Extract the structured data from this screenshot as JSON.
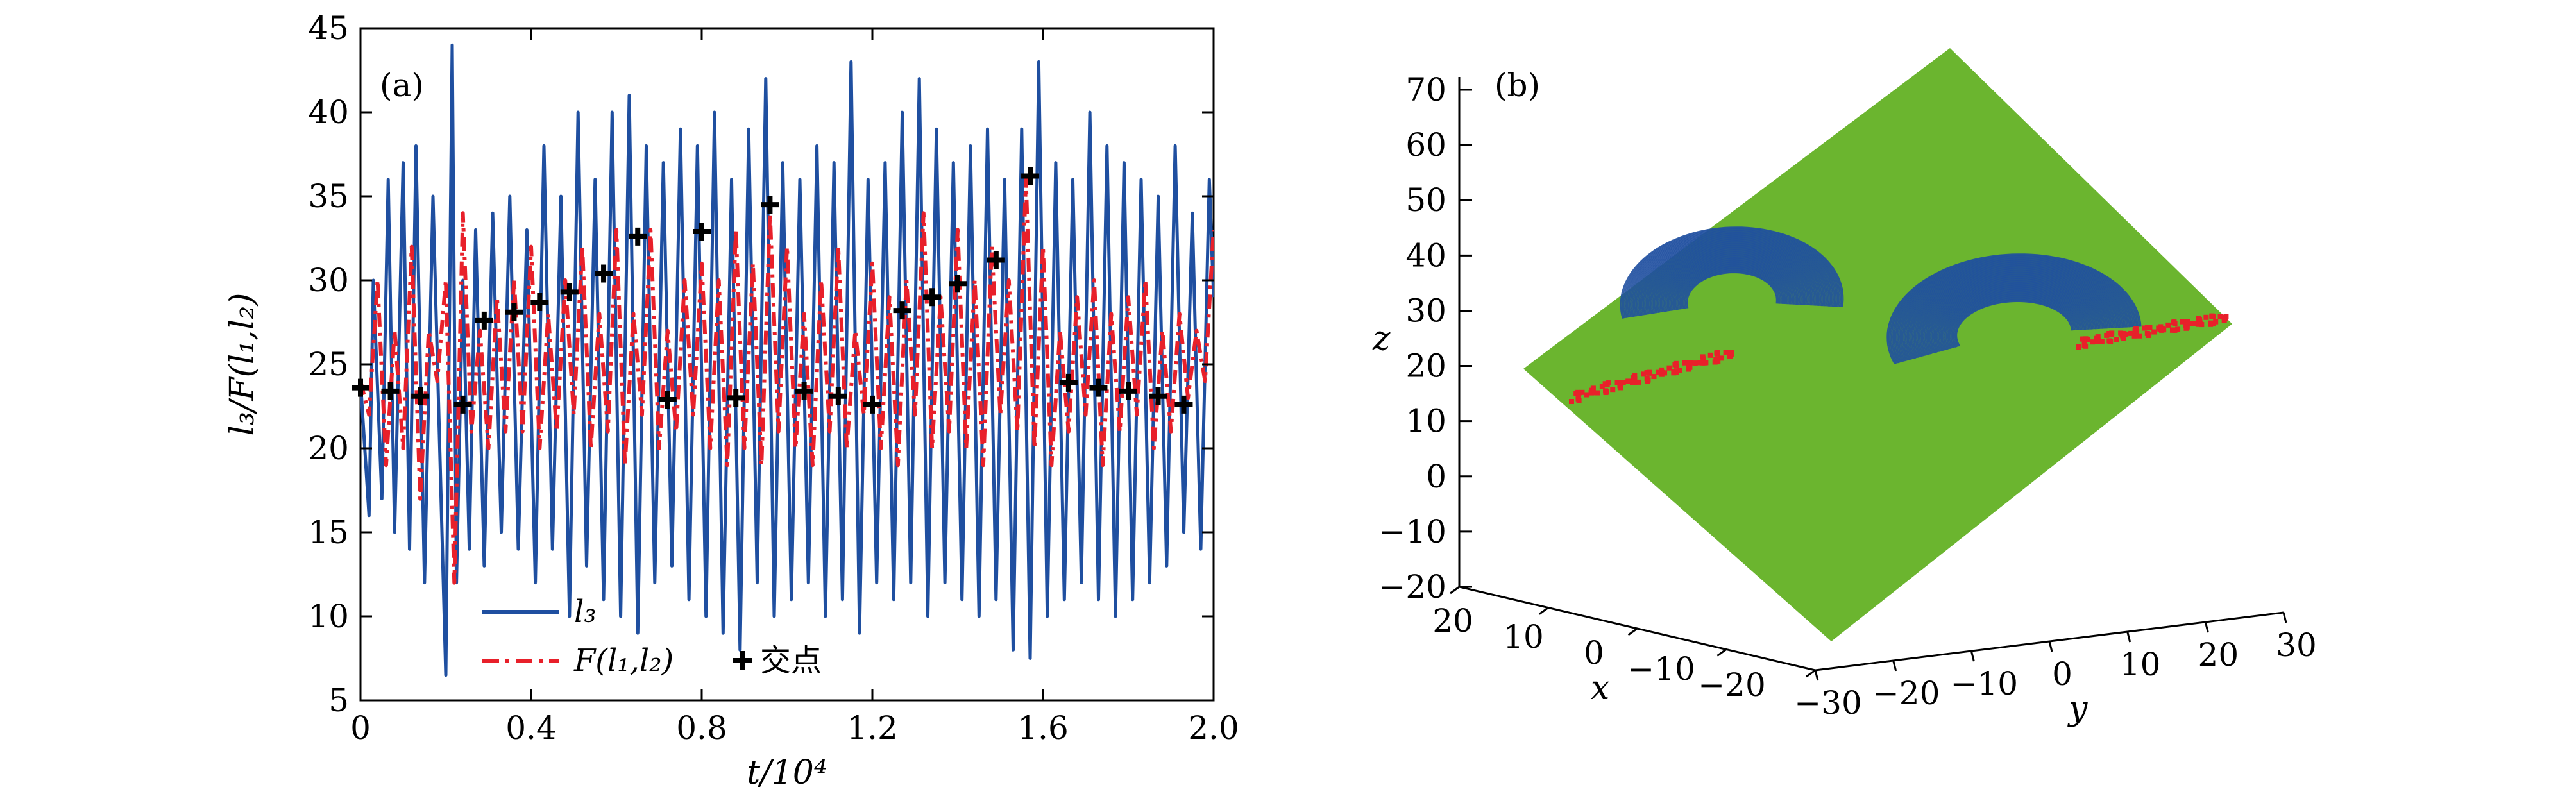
{
  "chart_data": [
    {
      "panel_label": "(a)",
      "type": "line",
      "xlabel": "t/10⁴",
      "ylabel": "l₃/F(l₁,l₂)",
      "xlim": [
        0,
        2.0
      ],
      "ylim": [
        5,
        45
      ],
      "x_ticks": [
        "0",
        "0.4",
        "0.8",
        "1.2",
        "1.6",
        "2.0"
      ],
      "y_ticks": [
        "5",
        "10",
        "15",
        "20",
        "25",
        "30",
        "35",
        "40",
        "45"
      ],
      "legend_position": "bottom-left",
      "colors": {
        "l3": "#1f4fa0",
        "F": "#e8202a",
        "marker": "#000000"
      },
      "series": [
        {
          "name": "l₃",
          "style": "solid",
          "x": [
            0,
            0.02,
            0.03,
            0.05,
            0.065,
            0.08,
            0.1,
            0.115,
            0.13,
            0.15,
            0.17,
            0.2,
            0.215,
            0.225,
            0.24,
            0.255,
            0.27,
            0.29,
            0.31,
            0.33,
            0.35,
            0.37,
            0.39,
            0.41,
            0.43,
            0.45,
            0.47,
            0.49,
            0.51,
            0.53,
            0.55,
            0.57,
            0.59,
            0.61,
            0.63,
            0.65,
            0.67,
            0.69,
            0.71,
            0.73,
            0.75,
            0.77,
            0.79,
            0.81,
            0.83,
            0.85,
            0.87,
            0.89,
            0.91,
            0.93,
            0.95,
            0.97,
            0.99,
            1.01,
            1.03,
            1.05,
            1.07,
            1.09,
            1.11,
            1.13,
            1.15,
            1.17,
            1.19,
            1.21,
            1.23,
            1.25,
            1.27,
            1.29,
            1.31,
            1.33,
            1.35,
            1.37,
            1.39,
            1.41,
            1.43,
            1.45,
            1.47,
            1.49,
            1.51,
            1.53,
            1.55,
            1.57,
            1.59,
            1.61,
            1.63,
            1.65,
            1.67,
            1.69,
            1.71,
            1.73,
            1.75,
            1.77,
            1.79,
            1.81,
            1.83,
            1.85,
            1.87,
            1.89,
            1.91,
            1.93,
            1.95,
            1.97,
            1.99,
            2.0
          ],
          "values": [
            24,
            16,
            30,
            17,
            36,
            15,
            37,
            14,
            38,
            12,
            35,
            6.5,
            44,
            12,
            30,
            14,
            33,
            13,
            34,
            15,
            35,
            14,
            33,
            12,
            38,
            14,
            35,
            10,
            40,
            13,
            36,
            11,
            40,
            10,
            41,
            9,
            38,
            12,
            37,
            13,
            39,
            11,
            38,
            10,
            40,
            9,
            36,
            8,
            39,
            12,
            42,
            10,
            37,
            11,
            36,
            12,
            38,
            10,
            37,
            11,
            43,
            9,
            36,
            12,
            37,
            11,
            40,
            12,
            42,
            10,
            39,
            12,
            37,
            11,
            38,
            10,
            39,
            11,
            36,
            8,
            39,
            7.5,
            43,
            10,
            37,
            11,
            36,
            12,
            40,
            11,
            38,
            10,
            37,
            11,
            36,
            12,
            35,
            13,
            38,
            15,
            34,
            14,
            36,
            29
          ]
        },
        {
          "name": "F(l₁,l₂)",
          "style": "dash-dot",
          "x": [
            0,
            0.02,
            0.04,
            0.06,
            0.08,
            0.1,
            0.12,
            0.14,
            0.16,
            0.18,
            0.2,
            0.22,
            0.24,
            0.26,
            0.28,
            0.3,
            0.32,
            0.34,
            0.36,
            0.38,
            0.4,
            0.42,
            0.44,
            0.46,
            0.48,
            0.5,
            0.52,
            0.54,
            0.56,
            0.58,
            0.6,
            0.62,
            0.64,
            0.66,
            0.68,
            0.7,
            0.72,
            0.74,
            0.76,
            0.78,
            0.8,
            0.82,
            0.84,
            0.86,
            0.88,
            0.9,
            0.92,
            0.94,
            0.96,
            0.98,
            1.0,
            1.02,
            1.04,
            1.06,
            1.08,
            1.1,
            1.12,
            1.14,
            1.16,
            1.18,
            1.2,
            1.22,
            1.24,
            1.26,
            1.28,
            1.3,
            1.32,
            1.34,
            1.36,
            1.38,
            1.4,
            1.42,
            1.44,
            1.46,
            1.48,
            1.5,
            1.52,
            1.54,
            1.56,
            1.58,
            1.6,
            1.62,
            1.64,
            1.66,
            1.68,
            1.7,
            1.72,
            1.74,
            1.76,
            1.78,
            1.8,
            1.82,
            1.84,
            1.86,
            1.88,
            1.9,
            1.92,
            1.94,
            1.96,
            1.98,
            2.0
          ],
          "values": [
            24,
            22,
            30,
            19,
            27,
            20,
            32,
            17,
            27,
            24,
            30,
            12,
            34,
            21,
            27,
            20,
            29,
            21,
            30,
            21,
            32,
            20,
            28,
            21,
            30,
            22,
            32,
            20,
            28,
            21,
            33,
            19,
            28,
            22,
            33,
            20,
            27,
            21,
            30,
            22,
            31,
            20,
            30,
            19,
            33,
            20,
            31,
            19,
            34,
            21,
            32,
            20,
            28,
            19,
            30,
            21,
            32,
            20,
            27,
            22,
            31,
            20,
            29,
            19,
            30,
            22,
            34,
            20,
            29,
            21,
            33,
            20,
            30,
            19,
            32,
            22,
            30,
            21,
            36,
            20,
            32,
            19,
            27,
            21,
            29,
            22,
            30,
            19,
            28,
            21,
            29,
            22,
            30,
            20,
            27,
            21,
            28,
            23,
            27,
            24,
            33
          ]
        },
        {
          "name": "交点",
          "style": "marker-plus",
          "x": [
            0,
            0.07,
            0.14,
            0.24,
            0.29,
            0.36,
            0.42,
            0.49,
            0.57,
            0.65,
            0.72,
            0.8,
            0.88,
            0.96,
            1.04,
            1.12,
            1.2,
            1.27,
            1.34,
            1.4,
            1.49,
            1.57,
            1.66,
            1.73,
            1.8,
            1.87,
            1.93
          ],
          "values": [
            23.6,
            23.4,
            23.1,
            22.6,
            27.6,
            28.1,
            28.7,
            29.3,
            30.4,
            32.6,
            22.9,
            32.9,
            23.0,
            34.5,
            23.4,
            23.1,
            22.6,
            28.2,
            29.0,
            29.8,
            31.2,
            36.2,
            23.9,
            23.6,
            23.4,
            23.1,
            22.6
          ]
        }
      ]
    },
    {
      "panel_label": "(b)",
      "type": "scatter",
      "xlabel": "x",
      "ylabel": "y",
      "zlabel": "z",
      "xlim": [
        -20,
        20
      ],
      "ylim": [
        -30,
        30
      ],
      "zlim": [
        -20,
        70
      ],
      "x_ticks": [
        "20",
        "10",
        "0",
        "−10",
        "−20"
      ],
      "y_ticks": [
        "−30",
        "−20",
        "−10",
        "0",
        "10",
        "20",
        "30"
      ],
      "z_ticks": [
        "70",
        "60",
        "50",
        "40",
        "30",
        "20",
        "10",
        "0",
        "−10",
        "−20"
      ],
      "colors": {
        "plane": "#6bb52f",
        "attractor": "#1f4fa0",
        "section_points": "#e8202a"
      }
    }
  ]
}
